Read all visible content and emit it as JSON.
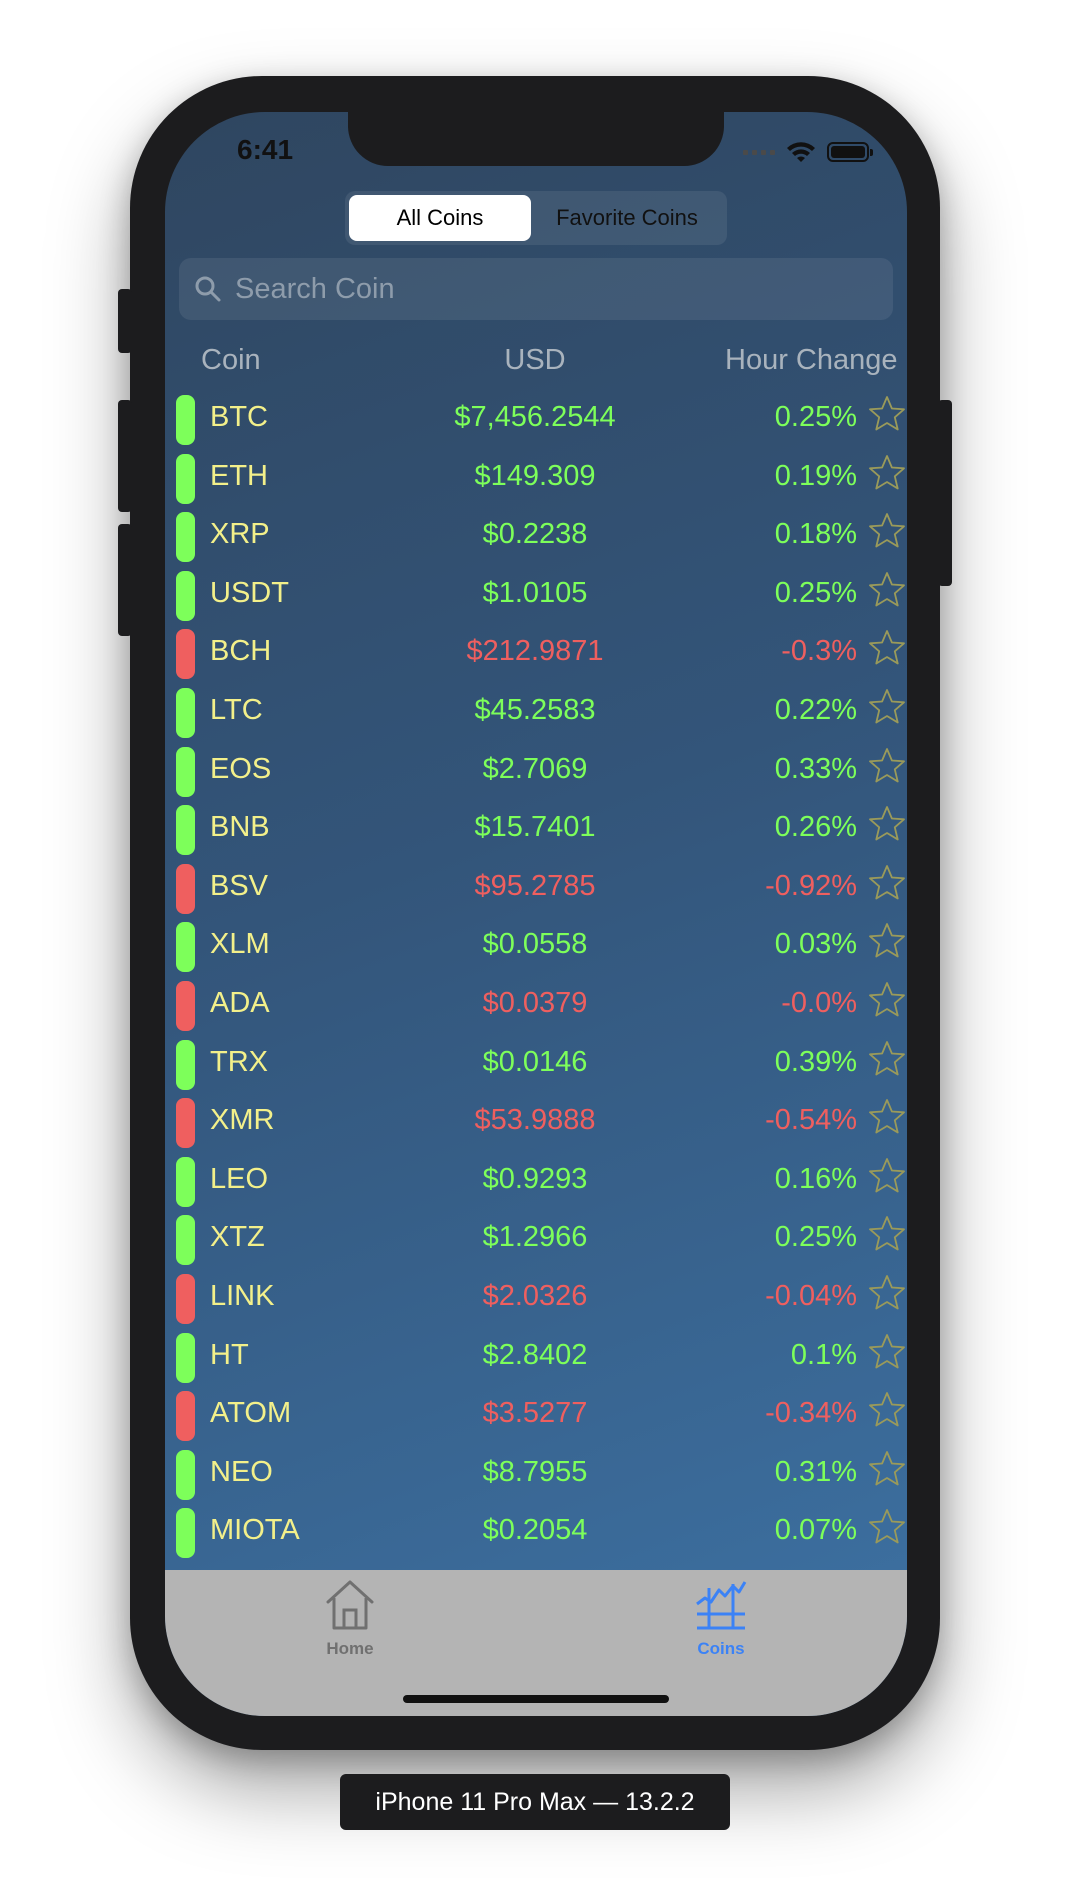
{
  "status_bar": {
    "time": "6:41"
  },
  "segmented_control": {
    "all_label": "All Coins",
    "favorite_label": "Favorite Coins"
  },
  "search": {
    "placeholder": "Search Coin"
  },
  "columns": {
    "coin": "Coin",
    "usd": "USD",
    "change": "Hour Change"
  },
  "colors": {
    "up": "#7dff5a",
    "down": "#ef5f5f",
    "symbol": "#f3f08a",
    "tab_active": "#3b82f6"
  },
  "coins": [
    {
      "symbol": "BTC",
      "price": "$7,456.2544",
      "change": "0.25%",
      "trend": "up"
    },
    {
      "symbol": "ETH",
      "price": "$149.309",
      "change": "0.19%",
      "trend": "up"
    },
    {
      "symbol": "XRP",
      "price": "$0.2238",
      "change": "0.18%",
      "trend": "up"
    },
    {
      "symbol": "USDT",
      "price": "$1.0105",
      "change": "0.25%",
      "trend": "up"
    },
    {
      "symbol": "BCH",
      "price": "$212.9871",
      "change": "-0.3%",
      "trend": "down"
    },
    {
      "symbol": "LTC",
      "price": "$45.2583",
      "change": "0.22%",
      "trend": "up"
    },
    {
      "symbol": "EOS",
      "price": "$2.7069",
      "change": "0.33%",
      "trend": "up"
    },
    {
      "symbol": "BNB",
      "price": "$15.7401",
      "change": "0.26%",
      "trend": "up"
    },
    {
      "symbol": "BSV",
      "price": "$95.2785",
      "change": "-0.92%",
      "trend": "down"
    },
    {
      "symbol": "XLM",
      "price": "$0.0558",
      "change": "0.03%",
      "trend": "up"
    },
    {
      "symbol": "ADA",
      "price": "$0.0379",
      "change": "-0.0%",
      "trend": "down"
    },
    {
      "symbol": "TRX",
      "price": "$0.0146",
      "change": "0.39%",
      "trend": "up"
    },
    {
      "symbol": "XMR",
      "price": "$53.9888",
      "change": "-0.54%",
      "trend": "down"
    },
    {
      "symbol": "LEO",
      "price": "$0.9293",
      "change": "0.16%",
      "trend": "up"
    },
    {
      "symbol": "XTZ",
      "price": "$1.2966",
      "change": "0.25%",
      "trend": "up"
    },
    {
      "symbol": "LINK",
      "price": "$2.0326",
      "change": "-0.04%",
      "trend": "down"
    },
    {
      "symbol": "HT",
      "price": "$2.8402",
      "change": "0.1%",
      "trend": "up"
    },
    {
      "symbol": "ATOM",
      "price": "$3.5277",
      "change": "-0.34%",
      "trend": "down"
    },
    {
      "symbol": "NEO",
      "price": "$8.7955",
      "change": "0.31%",
      "trend": "up"
    },
    {
      "symbol": "MIOTA",
      "price": "$0.2054",
      "change": "0.07%",
      "trend": "up"
    }
  ],
  "tab_bar": {
    "home_label": "Home",
    "home_icon": "house-icon",
    "coins_label": "Coins",
    "coins_icon": "chart-icon",
    "active": "coins"
  },
  "device_label": "iPhone 11 Pro Max — 13.2.2"
}
